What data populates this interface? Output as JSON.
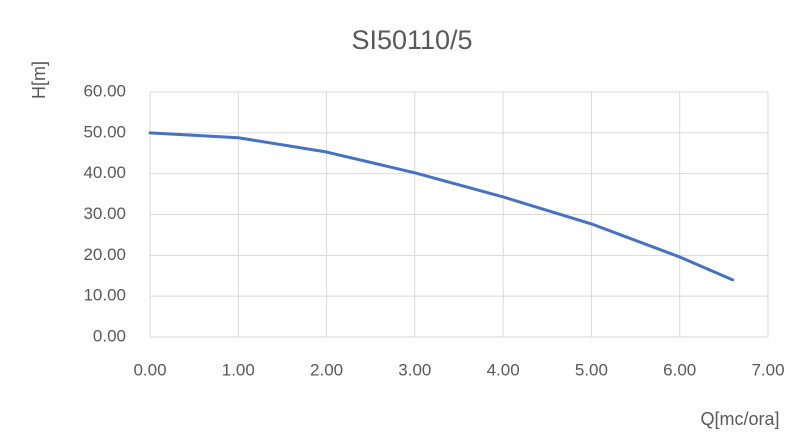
{
  "chart_data": {
    "type": "line",
    "title": "SI50110/5",
    "y_label": "H[m]",
    "x_label": "Q[mc/ora]",
    "x": [
      0,
      1,
      2,
      3,
      4,
      5,
      6,
      6.6
    ],
    "series": [
      {
        "color": "#4472c4",
        "values": [
          50,
          48.8,
          45.3,
          40.2,
          34.3,
          27.7,
          19.6,
          14
        ]
      }
    ],
    "xlim": [
      0,
      7
    ],
    "ylim": [
      0,
      60
    ],
    "xticks": [
      {
        "value": 0,
        "label": "0.00"
      },
      {
        "value": 1,
        "label": "1.00"
      },
      {
        "value": 2,
        "label": "2.00"
      },
      {
        "value": 3,
        "label": "3.00"
      },
      {
        "value": 4,
        "label": "4.00"
      },
      {
        "value": 5,
        "label": "5.00"
      },
      {
        "value": 6,
        "label": "6.00"
      },
      {
        "value": 7,
        "label": "7.00"
      }
    ],
    "yticks": [
      {
        "value": 0,
        "label": "0.00"
      },
      {
        "value": 10,
        "label": "10.00"
      },
      {
        "value": 20,
        "label": "20.00"
      },
      {
        "value": 30,
        "label": "30.00"
      },
      {
        "value": 40,
        "label": "40.00"
      },
      {
        "value": 50,
        "label": "50.00"
      },
      {
        "value": 60,
        "label": "60.00"
      }
    ],
    "grid": true
  }
}
